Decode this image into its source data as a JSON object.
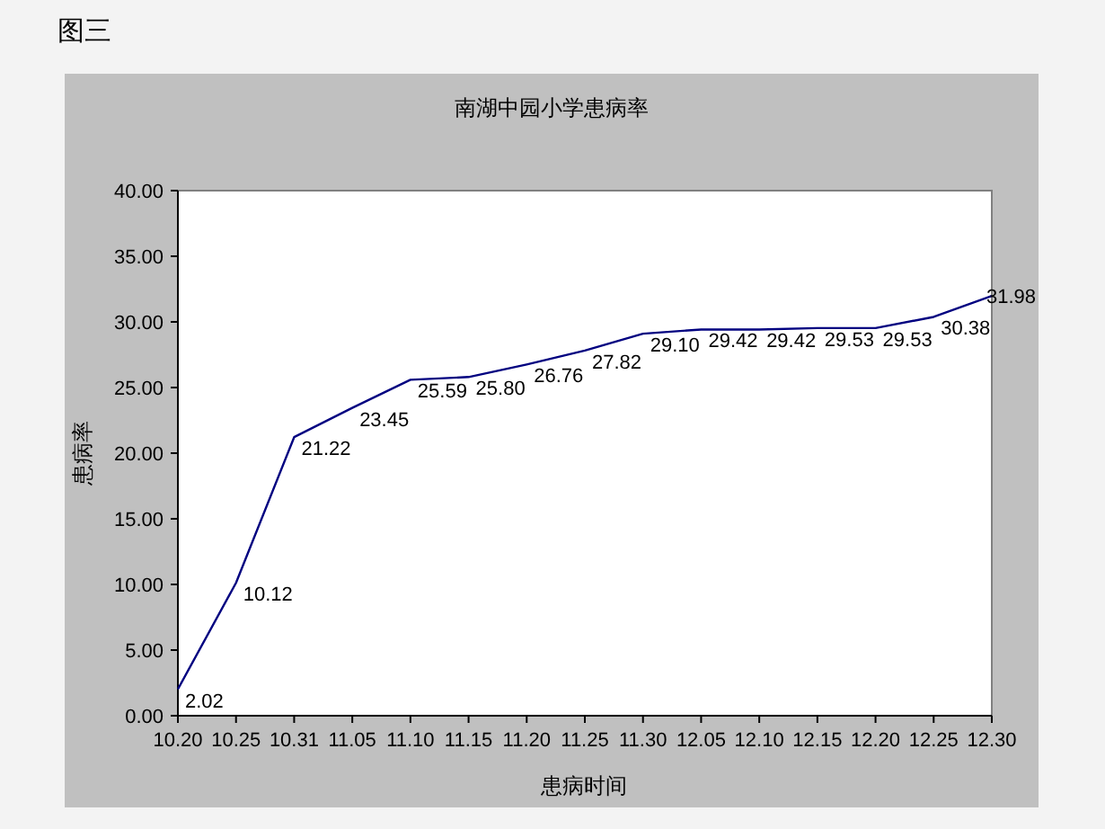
{
  "chart_data": {
    "type": "line",
    "title": "南湖中园小学患病率",
    "xlabel": "患病时间",
    "ylabel": "患病率",
    "annotations": [
      "图三"
    ],
    "categories": [
      "10.20",
      "10.25",
      "10.31",
      "11.05",
      "11.10",
      "11.15",
      "11.20",
      "11.25",
      "11.30",
      "12.05",
      "12.10",
      "12.15",
      "12.20",
      "12.25",
      "12.30"
    ],
    "series": [
      {
        "color": "#000080",
        "values": [
          2.02,
          10.12,
          21.22,
          23.45,
          25.59,
          25.8,
          26.76,
          27.82,
          29.1,
          29.42,
          29.42,
          29.53,
          29.53,
          30.38,
          31.98
        ],
        "value_labels": [
          "2.02",
          "10.12",
          "21.22",
          "23.45",
          "25.59",
          "25.80",
          "26.76",
          "27.82",
          "29.10",
          "29.42",
          "29.42",
          "29.53",
          "29.53",
          "30.38",
          "31.98"
        ]
      }
    ],
    "ylim": [
      0,
      40
    ],
    "yticks": [
      {
        "value": 0,
        "label": "0.00"
      },
      {
        "value": 5,
        "label": "5.00"
      },
      {
        "value": 10,
        "label": "10.00"
      },
      {
        "value": 15,
        "label": "15.00"
      },
      {
        "value": 20,
        "label": "20.00"
      },
      {
        "value": 25,
        "label": "25.00"
      },
      {
        "value": 30,
        "label": "30.00"
      },
      {
        "value": 35,
        "label": "35.00"
      },
      {
        "value": 40,
        "label": "40.00"
      }
    ],
    "grid": false,
    "marker": "none",
    "line_style": "solid"
  }
}
